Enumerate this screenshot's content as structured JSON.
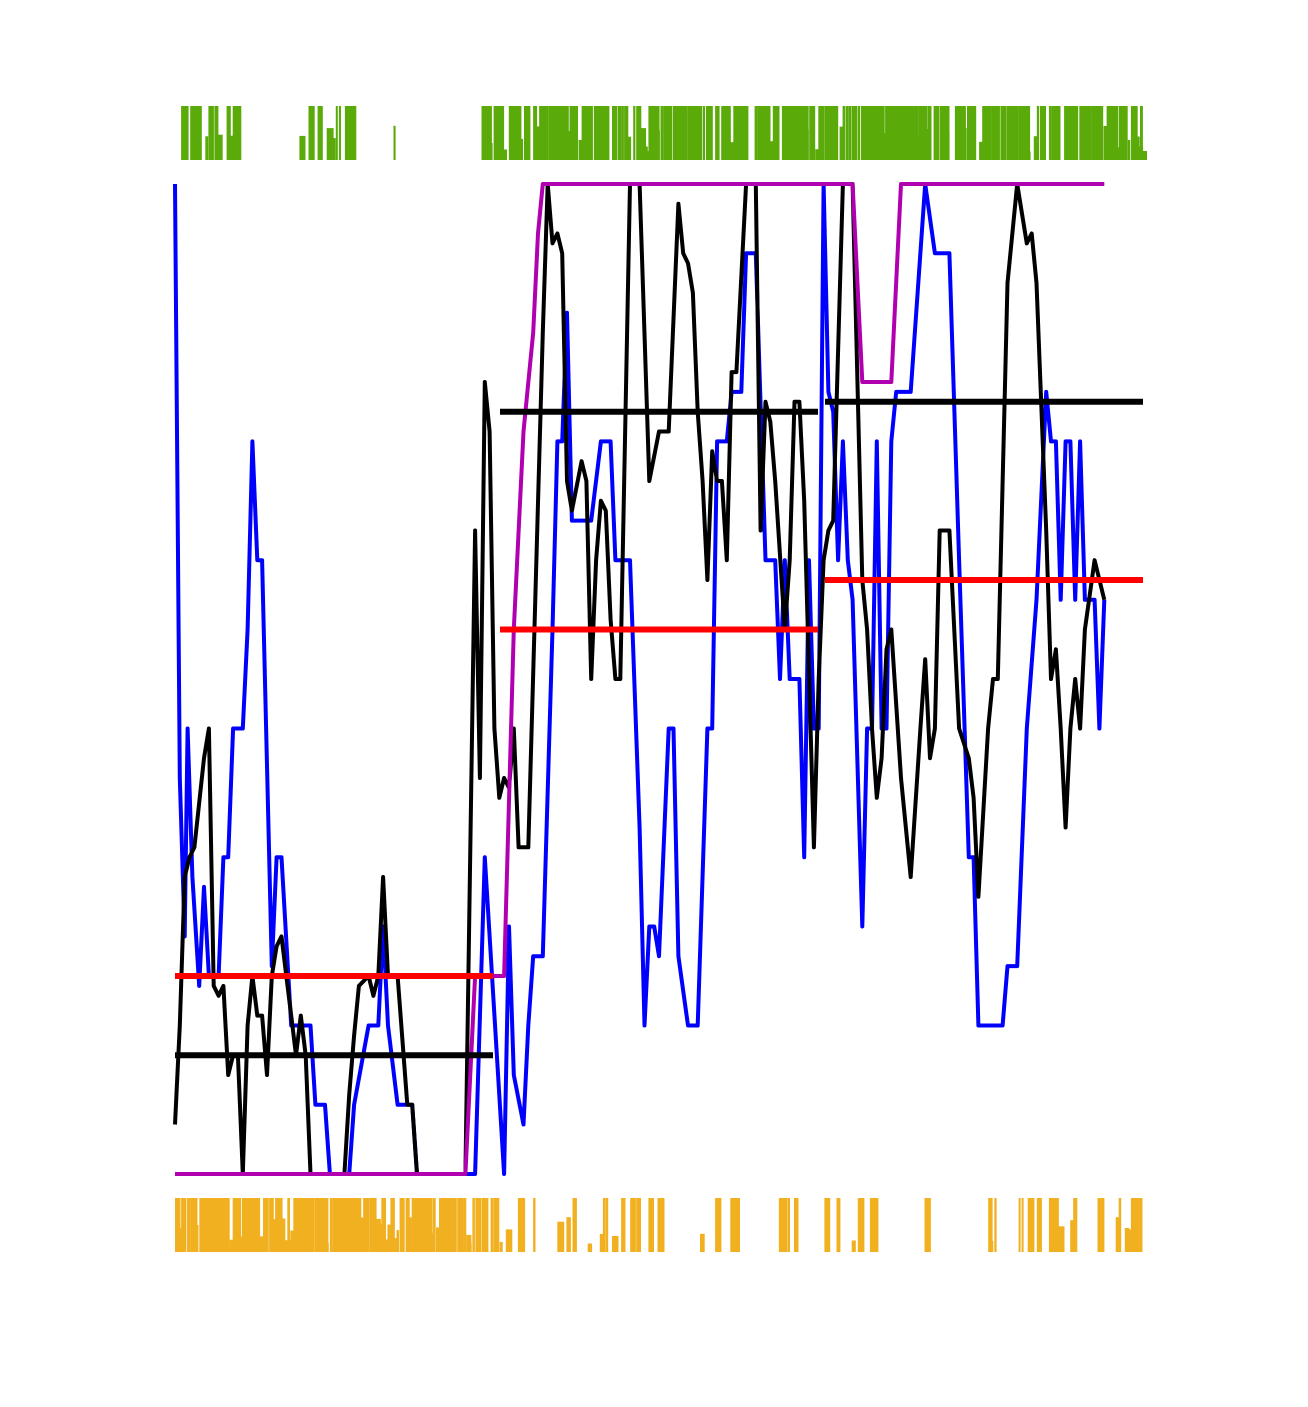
{
  "chart_data": {
    "type": "line",
    "title": "",
    "xlabel": "",
    "ylabel": "",
    "axes_visible": false,
    "grid": false,
    "legend": "none",
    "x_range": [
      0,
      1
    ],
    "y_range": [
      0,
      1
    ],
    "colors": {
      "blue": "#0000ff",
      "black": "#000000",
      "magenta": "#b000b0",
      "red": "#ff0000",
      "green_rug": "#5aaa0a",
      "orange_rug": "#f0b020"
    },
    "series": [
      {
        "color": "blue",
        "points": [
          [
            0.0,
            1.0
          ],
          [
            0.005,
            0.4
          ],
          [
            0.01,
            0.24
          ],
          [
            0.013,
            0.45
          ],
          [
            0.018,
            0.3
          ],
          [
            0.025,
            0.19
          ],
          [
            0.03,
            0.29
          ],
          [
            0.035,
            0.2
          ],
          [
            0.045,
            0.2
          ],
          [
            0.05,
            0.32
          ],
          [
            0.055,
            0.32
          ],
          [
            0.06,
            0.45
          ],
          [
            0.07,
            0.45
          ],
          [
            0.075,
            0.55
          ],
          [
            0.08,
            0.74
          ],
          [
            0.085,
            0.62
          ],
          [
            0.09,
            0.62
          ],
          [
            0.1,
            0.21
          ],
          [
            0.105,
            0.32
          ],
          [
            0.11,
            0.32
          ],
          [
            0.12,
            0.15
          ],
          [
            0.14,
            0.15
          ],
          [
            0.145,
            0.07
          ],
          [
            0.155,
            0.07
          ],
          [
            0.16,
            0.0
          ],
          [
            0.18,
            0.0
          ],
          [
            0.185,
            0.07
          ],
          [
            0.2,
            0.15
          ],
          [
            0.21,
            0.15
          ],
          [
            0.215,
            0.25
          ],
          [
            0.22,
            0.15
          ],
          [
            0.23,
            0.07
          ],
          [
            0.245,
            0.07
          ],
          [
            0.25,
            0.0
          ],
          [
            0.31,
            0.0
          ],
          [
            0.32,
            0.32
          ],
          [
            0.34,
            0.0
          ],
          [
            0.345,
            0.25
          ],
          [
            0.35,
            0.1
          ],
          [
            0.36,
            0.05
          ],
          [
            0.365,
            0.15
          ],
          [
            0.37,
            0.22
          ],
          [
            0.38,
            0.22
          ],
          [
            0.39,
            0.55
          ],
          [
            0.395,
            0.74
          ],
          [
            0.4,
            0.74
          ],
          [
            0.405,
            0.87
          ],
          [
            0.41,
            0.66
          ],
          [
            0.43,
            0.66
          ],
          [
            0.44,
            0.74
          ],
          [
            0.45,
            0.74
          ],
          [
            0.455,
            0.62
          ],
          [
            0.47,
            0.62
          ],
          [
            0.48,
            0.35
          ],
          [
            0.485,
            0.15
          ],
          [
            0.49,
            0.25
          ],
          [
            0.495,
            0.25
          ],
          [
            0.5,
            0.22
          ],
          [
            0.51,
            0.45
          ],
          [
            0.515,
            0.45
          ],
          [
            0.52,
            0.22
          ],
          [
            0.53,
            0.15
          ],
          [
            0.54,
            0.15
          ],
          [
            0.55,
            0.45
          ],
          [
            0.555,
            0.45
          ],
          [
            0.56,
            0.74
          ],
          [
            0.57,
            0.74
          ],
          [
            0.575,
            0.79
          ],
          [
            0.585,
            0.79
          ],
          [
            0.59,
            0.93
          ],
          [
            0.6,
            0.93
          ],
          [
            0.61,
            0.62
          ],
          [
            0.62,
            0.62
          ],
          [
            0.625,
            0.5
          ],
          [
            0.63,
            0.62
          ],
          [
            0.635,
            0.5
          ],
          [
            0.645,
            0.5
          ],
          [
            0.65,
            0.32
          ],
          [
            0.655,
            0.62
          ],
          [
            0.66,
            0.45
          ],
          [
            0.665,
            0.45
          ],
          [
            0.67,
            1.0
          ],
          [
            0.675,
            0.79
          ],
          [
            0.68,
            0.77
          ],
          [
            0.685,
            0.62
          ],
          [
            0.69,
            0.74
          ],
          [
            0.695,
            0.62
          ],
          [
            0.7,
            0.58
          ],
          [
            0.71,
            0.25
          ],
          [
            0.715,
            0.45
          ],
          [
            0.72,
            0.45
          ],
          [
            0.725,
            0.74
          ],
          [
            0.73,
            0.45
          ],
          [
            0.735,
            0.45
          ],
          [
            0.74,
            0.74
          ],
          [
            0.745,
            0.79
          ],
          [
            0.76,
            0.79
          ],
          [
            0.775,
            1.0
          ],
          [
            0.785,
            0.93
          ],
          [
            0.8,
            0.93
          ],
          [
            0.81,
            0.62
          ],
          [
            0.82,
            0.32
          ],
          [
            0.825,
            0.32
          ],
          [
            0.83,
            0.15
          ],
          [
            0.855,
            0.15
          ],
          [
            0.86,
            0.21
          ],
          [
            0.87,
            0.21
          ],
          [
            0.88,
            0.45
          ],
          [
            0.89,
            0.58
          ],
          [
            0.9,
            0.79
          ],
          [
            0.905,
            0.74
          ],
          [
            0.91,
            0.74
          ],
          [
            0.915,
            0.58
          ],
          [
            0.92,
            0.74
          ],
          [
            0.925,
            0.74
          ],
          [
            0.93,
            0.58
          ],
          [
            0.935,
            0.74
          ],
          [
            0.94,
            0.58
          ],
          [
            0.95,
            0.58
          ],
          [
            0.955,
            0.45
          ],
          [
            0.96,
            0.58
          ]
        ]
      },
      {
        "color": "black",
        "points": [
          [
            0.0,
            0.05
          ],
          [
            0.005,
            0.15
          ],
          [
            0.01,
            0.3
          ],
          [
            0.015,
            0.32
          ],
          [
            0.02,
            0.33
          ],
          [
            0.03,
            0.42
          ],
          [
            0.035,
            0.45
          ],
          [
            0.04,
            0.19
          ],
          [
            0.045,
            0.18
          ],
          [
            0.05,
            0.19
          ],
          [
            0.055,
            0.1
          ],
          [
            0.06,
            0.12
          ],
          [
            0.065,
            0.12
          ],
          [
            0.07,
            0.0
          ],
          [
            0.075,
            0.15
          ],
          [
            0.08,
            0.2
          ],
          [
            0.085,
            0.16
          ],
          [
            0.09,
            0.16
          ],
          [
            0.095,
            0.1
          ],
          [
            0.1,
            0.2
          ],
          [
            0.105,
            0.23
          ],
          [
            0.11,
            0.24
          ],
          [
            0.115,
            0.2
          ],
          [
            0.12,
            0.16
          ],
          [
            0.125,
            0.12
          ],
          [
            0.13,
            0.16
          ],
          [
            0.135,
            0.12
          ],
          [
            0.14,
            0.0
          ],
          [
            0.175,
            0.0
          ],
          [
            0.18,
            0.08
          ],
          [
            0.185,
            0.14
          ],
          [
            0.19,
            0.19
          ],
          [
            0.2,
            0.2
          ],
          [
            0.205,
            0.18
          ],
          [
            0.21,
            0.2
          ],
          [
            0.215,
            0.3
          ],
          [
            0.22,
            0.2
          ],
          [
            0.23,
            0.2
          ],
          [
            0.24,
            0.07
          ],
          [
            0.245,
            0.07
          ],
          [
            0.25,
            0.0
          ],
          [
            0.3,
            0.0
          ],
          [
            0.31,
            0.65
          ],
          [
            0.315,
            0.4
          ],
          [
            0.32,
            0.8
          ],
          [
            0.325,
            0.75
          ],
          [
            0.33,
            0.45
          ],
          [
            0.335,
            0.38
          ],
          [
            0.34,
            0.4
          ],
          [
            0.345,
            0.39
          ],
          [
            0.35,
            0.45
          ],
          [
            0.355,
            0.33
          ],
          [
            0.365,
            0.33
          ],
          [
            0.38,
            0.85
          ],
          [
            0.385,
            1.0
          ],
          [
            0.39,
            0.94
          ],
          [
            0.395,
            0.95
          ],
          [
            0.4,
            0.93
          ],
          [
            0.405,
            0.7
          ],
          [
            0.41,
            0.67
          ],
          [
            0.42,
            0.72
          ],
          [
            0.425,
            0.7
          ],
          [
            0.43,
            0.5
          ],
          [
            0.435,
            0.62
          ],
          [
            0.44,
            0.68
          ],
          [
            0.445,
            0.67
          ],
          [
            0.45,
            0.56
          ],
          [
            0.455,
            0.5
          ],
          [
            0.46,
            0.5
          ],
          [
            0.47,
            1.0
          ],
          [
            0.48,
            1.0
          ],
          [
            0.49,
            0.7
          ],
          [
            0.5,
            0.75
          ],
          [
            0.51,
            0.75
          ],
          [
            0.52,
            0.98
          ],
          [
            0.525,
            0.93
          ],
          [
            0.53,
            0.92
          ],
          [
            0.535,
            0.89
          ],
          [
            0.54,
            0.77
          ],
          [
            0.545,
            0.7
          ],
          [
            0.55,
            0.6
          ],
          [
            0.555,
            0.73
          ],
          [
            0.56,
            0.7
          ],
          [
            0.565,
            0.7
          ],
          [
            0.57,
            0.62
          ],
          [
            0.575,
            0.81
          ],
          [
            0.58,
            0.81
          ],
          [
            0.59,
            1.0
          ],
          [
            0.6,
            1.0
          ],
          [
            0.605,
            0.65
          ],
          [
            0.61,
            0.78
          ],
          [
            0.615,
            0.76
          ],
          [
            0.62,
            0.7
          ],
          [
            0.63,
            0.55
          ],
          [
            0.635,
            0.62
          ],
          [
            0.64,
            0.78
          ],
          [
            0.645,
            0.78
          ],
          [
            0.65,
            0.68
          ],
          [
            0.66,
            0.33
          ],
          [
            0.665,
            0.5
          ],
          [
            0.67,
            0.62
          ],
          [
            0.675,
            0.65
          ],
          [
            0.68,
            0.66
          ],
          [
            0.69,
            1.0
          ],
          [
            0.7,
            1.0
          ],
          [
            0.71,
            0.6
          ],
          [
            0.715,
            0.55
          ],
          [
            0.72,
            0.45
          ],
          [
            0.725,
            0.38
          ],
          [
            0.73,
            0.42
          ],
          [
            0.735,
            0.53
          ],
          [
            0.74,
            0.55
          ],
          [
            0.75,
            0.4
          ],
          [
            0.76,
            0.3
          ],
          [
            0.77,
            0.45
          ],
          [
            0.775,
            0.52
          ],
          [
            0.78,
            0.42
          ],
          [
            0.785,
            0.45
          ],
          [
            0.79,
            0.65
          ],
          [
            0.8,
            0.65
          ],
          [
            0.81,
            0.45
          ],
          [
            0.82,
            0.42
          ],
          [
            0.825,
            0.38
          ],
          [
            0.83,
            0.28
          ],
          [
            0.84,
            0.45
          ],
          [
            0.845,
            0.5
          ],
          [
            0.85,
            0.5
          ],
          [
            0.86,
            0.9
          ],
          [
            0.87,
            1.0
          ],
          [
            0.88,
            0.94
          ],
          [
            0.885,
            0.95
          ],
          [
            0.89,
            0.9
          ],
          [
            0.9,
            0.65
          ],
          [
            0.905,
            0.5
          ],
          [
            0.91,
            0.53
          ],
          [
            0.915,
            0.45
          ],
          [
            0.92,
            0.35
          ],
          [
            0.925,
            0.45
          ],
          [
            0.93,
            0.5
          ],
          [
            0.935,
            0.45
          ],
          [
            0.94,
            0.55
          ],
          [
            0.95,
            0.62
          ],
          [
            0.96,
            0.58
          ]
        ]
      },
      {
        "color": "magenta",
        "points": [
          [
            0.0,
            0.0
          ],
          [
            0.3,
            0.0
          ],
          [
            0.31,
            0.2
          ],
          [
            0.34,
            0.2
          ],
          [
            0.35,
            0.55
          ],
          [
            0.36,
            0.75
          ],
          [
            0.37,
            0.85
          ],
          [
            0.375,
            0.95
          ],
          [
            0.38,
            1.0
          ],
          [
            0.7,
            1.0
          ],
          [
            0.71,
            0.8
          ],
          [
            0.74,
            0.8
          ],
          [
            0.75,
            1.0
          ],
          [
            0.96,
            1.0
          ]
        ]
      }
    ],
    "means": [
      {
        "color": "red",
        "segments": [
          [
            0.0,
            0.33,
            0.2
          ],
          [
            0.34,
            0.66,
            0.55
          ],
          [
            0.67,
            1.0,
            0.6
          ]
        ]
      },
      {
        "color": "black",
        "segments": [
          [
            0.0,
            0.33,
            0.12
          ],
          [
            0.34,
            0.66,
            0.77
          ],
          [
            0.67,
            1.0,
            0.78
          ]
        ]
      }
    ],
    "top_rug_density": [
      [
        0.0,
        0.6
      ],
      [
        0.03,
        0.6
      ],
      [
        0.06,
        0.4
      ],
      [
        0.09,
        0.2
      ],
      [
        0.12,
        0.0
      ],
      [
        0.18,
        0.3
      ],
      [
        0.24,
        0.0
      ],
      [
        0.31,
        0.0
      ],
      [
        0.32,
        0.9
      ],
      [
        0.4,
        0.9
      ],
      [
        0.45,
        0.9
      ],
      [
        0.5,
        0.95
      ],
      [
        0.55,
        0.95
      ],
      [
        0.6,
        0.9
      ],
      [
        0.65,
        0.95
      ],
      [
        0.7,
        0.95
      ],
      [
        0.75,
        0.9
      ],
      [
        0.8,
        0.6
      ],
      [
        0.85,
        0.95
      ],
      [
        0.9,
        0.95
      ],
      [
        0.95,
        0.95
      ],
      [
        1.0,
        0.95
      ]
    ],
    "bottom_rug_density": [
      [
        0.0,
        1.0
      ],
      [
        0.05,
        1.0
      ],
      [
        0.1,
        1.0
      ],
      [
        0.15,
        1.0
      ],
      [
        0.2,
        1.0
      ],
      [
        0.25,
        1.0
      ],
      [
        0.3,
        0.95
      ],
      [
        0.33,
        0.6
      ],
      [
        0.38,
        0.3
      ],
      [
        0.43,
        0.4
      ],
      [
        0.48,
        0.3
      ],
      [
        0.52,
        0.1
      ],
      [
        0.56,
        0.3
      ],
      [
        0.6,
        0.4
      ],
      [
        0.65,
        0.3
      ],
      [
        0.7,
        0.3
      ],
      [
        0.75,
        0.1
      ],
      [
        0.8,
        0.2
      ],
      [
        0.85,
        0.4
      ],
      [
        0.9,
        0.4
      ],
      [
        0.95,
        0.4
      ],
      [
        1.0,
        0.5
      ]
    ]
  }
}
